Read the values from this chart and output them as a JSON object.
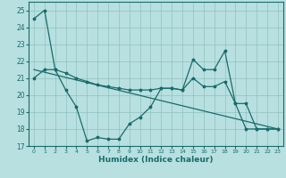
{
  "xlabel": "Humidex (Indice chaleur)",
  "xlim": [
    -0.5,
    23.5
  ],
  "ylim": [
    17,
    25.5
  ],
  "yticks": [
    17,
    18,
    19,
    20,
    21,
    22,
    23,
    24,
    25
  ],
  "xticks": [
    0,
    1,
    2,
    3,
    4,
    5,
    6,
    7,
    8,
    9,
    10,
    11,
    12,
    13,
    14,
    15,
    16,
    17,
    18,
    19,
    20,
    21,
    22,
    23
  ],
  "bg_color": "#b8e0e0",
  "grid_color": "#90c0c0",
  "line_color": "#1a6b6b",
  "line1_x": [
    0,
    1,
    2,
    3,
    4,
    5,
    6,
    7,
    8,
    9,
    10,
    11,
    12,
    13,
    14,
    15,
    16,
    17,
    18,
    19,
    20,
    21,
    22,
    23
  ],
  "line1_y": [
    24.5,
    25.0,
    21.5,
    20.3,
    19.3,
    17.3,
    17.5,
    17.4,
    17.4,
    18.3,
    18.7,
    19.3,
    20.4,
    20.4,
    20.3,
    22.1,
    21.5,
    21.5,
    22.6,
    19.5,
    18.0,
    18.0,
    18.0,
    18.0
  ],
  "line2_x": [
    0,
    1,
    2,
    3,
    4,
    5,
    6,
    7,
    8,
    9,
    10,
    11,
    12,
    13,
    14,
    15,
    16,
    17,
    18,
    19,
    20,
    21,
    22,
    23
  ],
  "line2_y": [
    21.0,
    21.5,
    21.5,
    21.3,
    21.0,
    20.8,
    20.6,
    20.5,
    20.4,
    20.3,
    20.3,
    20.3,
    20.4,
    20.4,
    20.3,
    21.0,
    20.5,
    20.5,
    20.8,
    19.5,
    19.5,
    18.0,
    18.0,
    18.0
  ],
  "trend_x": [
    0,
    23
  ],
  "trend_y": [
    21.5,
    18.0
  ]
}
